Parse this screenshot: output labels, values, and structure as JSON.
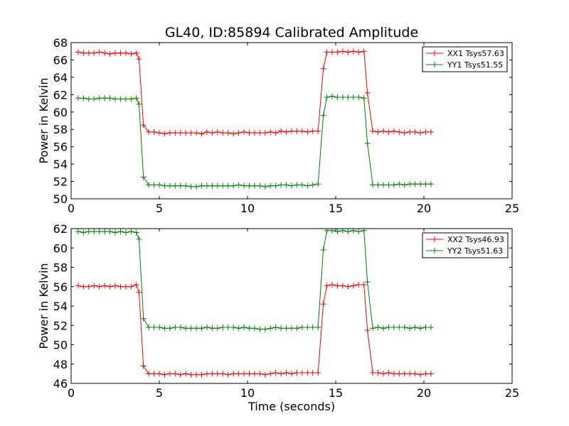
{
  "title": "GL40, ID:85894 Calibrated Amplitude",
  "xlabel": "Time (seconds)",
  "chart_data": [
    {
      "type": "line",
      "ylabel": "Power in Kelvin",
      "xlim": [
        0,
        25
      ],
      "ylim": [
        50,
        68
      ],
      "xticks": [
        0,
        5,
        10,
        15,
        20,
        25
      ],
      "yticks": [
        50,
        52,
        54,
        56,
        58,
        60,
        62,
        64,
        66,
        68
      ],
      "legend_position": "upper right",
      "series": [
        {
          "name": "XX1 Tsys57.63",
          "color": "#ff0000",
          "x": [
            0.4,
            0.7,
            1.0,
            1.3,
            1.6,
            1.9,
            2.2,
            2.5,
            2.8,
            3.1,
            3.4,
            3.7,
            3.85,
            4.1,
            4.4,
            4.7,
            5.0,
            5.3,
            5.6,
            5.9,
            6.2,
            6.5,
            6.8,
            7.1,
            7.4,
            7.7,
            8.0,
            8.3,
            8.6,
            8.9,
            9.2,
            9.5,
            9.8,
            10.1,
            10.4,
            10.7,
            11.0,
            11.3,
            11.6,
            11.9,
            12.2,
            12.5,
            12.8,
            13.1,
            13.4,
            13.7,
            14.0,
            14.3,
            14.5,
            14.8,
            15.1,
            15.4,
            15.7,
            16.0,
            16.3,
            16.6,
            16.8,
            17.1,
            17.4,
            17.7,
            18.0,
            18.3,
            18.6,
            18.9,
            19.2,
            19.5,
            19.8,
            20.1,
            20.4
          ],
          "y": [
            66.9,
            66.8,
            66.8,
            66.8,
            66.9,
            66.8,
            66.7,
            66.8,
            66.8,
            66.8,
            66.7,
            66.8,
            66.1,
            58.5,
            57.7,
            57.7,
            57.6,
            57.5,
            57.6,
            57.6,
            57.6,
            57.6,
            57.6,
            57.6,
            57.5,
            57.7,
            57.6,
            57.7,
            57.6,
            57.6,
            57.5,
            57.6,
            57.7,
            57.6,
            57.6,
            57.6,
            57.6,
            57.7,
            57.6,
            57.8,
            57.7,
            57.8,
            57.8,
            57.8,
            57.7,
            57.8,
            57.8,
            65.0,
            66.9,
            66.9,
            66.9,
            67.0,
            66.9,
            67.0,
            66.9,
            67.0,
            62.2,
            57.8,
            57.7,
            57.8,
            57.7,
            57.8,
            57.7,
            57.6,
            57.7,
            57.7,
            57.6,
            57.7,
            57.7
          ]
        },
        {
          "name": "YY1 Tsys51.55",
          "color": "#008000",
          "x": [
            0.4,
            0.7,
            1.0,
            1.3,
            1.6,
            1.9,
            2.2,
            2.5,
            2.8,
            3.1,
            3.4,
            3.7,
            3.85,
            4.1,
            4.4,
            4.7,
            5.0,
            5.3,
            5.6,
            5.9,
            6.2,
            6.5,
            6.8,
            7.1,
            7.4,
            7.7,
            8.0,
            8.3,
            8.6,
            8.9,
            9.2,
            9.5,
            9.8,
            10.1,
            10.4,
            10.7,
            11.0,
            11.3,
            11.6,
            11.9,
            12.2,
            12.5,
            12.8,
            13.1,
            13.4,
            13.7,
            14.0,
            14.3,
            14.5,
            14.8,
            15.1,
            15.4,
            15.7,
            16.0,
            16.3,
            16.6,
            16.8,
            17.1,
            17.4,
            17.7,
            18.0,
            18.3,
            18.6,
            18.9,
            19.2,
            19.5,
            19.8,
            20.1,
            20.4
          ],
          "y": [
            61.6,
            61.6,
            61.5,
            61.5,
            61.6,
            61.6,
            61.6,
            61.5,
            61.5,
            61.5,
            61.5,
            61.6,
            60.9,
            52.5,
            51.6,
            51.6,
            51.6,
            51.5,
            51.5,
            51.5,
            51.5,
            51.5,
            51.4,
            51.4,
            51.5,
            51.5,
            51.5,
            51.5,
            51.5,
            51.5,
            51.5,
            51.6,
            51.5,
            51.5,
            51.5,
            51.5,
            51.4,
            51.5,
            51.5,
            51.6,
            51.6,
            51.5,
            51.6,
            51.6,
            51.5,
            51.6,
            51.7,
            59.6,
            61.7,
            61.8,
            61.7,
            61.7,
            61.7,
            61.7,
            61.7,
            61.6,
            56.4,
            51.6,
            51.6,
            51.6,
            51.6,
            51.6,
            51.7,
            51.6,
            51.7,
            51.7,
            51.7,
            51.7,
            51.7
          ]
        }
      ]
    },
    {
      "type": "line",
      "ylabel": "Power in Kelvin",
      "xlim": [
        0,
        25
      ],
      "ylim": [
        46,
        62
      ],
      "xticks": [
        0,
        5,
        10,
        15,
        20,
        25
      ],
      "yticks": [
        46,
        48,
        50,
        52,
        54,
        56,
        58,
        60,
        62
      ],
      "legend_position": "upper right",
      "series": [
        {
          "name": "XX2 Tsys46.93",
          "color": "#ff0000",
          "x": [
            0.4,
            0.7,
            1.0,
            1.3,
            1.6,
            1.9,
            2.2,
            2.5,
            2.8,
            3.1,
            3.4,
            3.7,
            3.85,
            4.1,
            4.4,
            4.7,
            5.0,
            5.3,
            5.6,
            5.9,
            6.2,
            6.5,
            6.8,
            7.1,
            7.4,
            7.7,
            8.0,
            8.3,
            8.6,
            8.9,
            9.2,
            9.5,
            9.8,
            10.1,
            10.4,
            10.7,
            11.0,
            11.3,
            11.6,
            11.9,
            12.2,
            12.5,
            12.8,
            13.1,
            13.4,
            13.7,
            14.0,
            14.3,
            14.5,
            14.8,
            15.1,
            15.4,
            15.7,
            16.0,
            16.3,
            16.6,
            16.8,
            17.1,
            17.4,
            17.7,
            18.0,
            18.3,
            18.6,
            18.9,
            19.2,
            19.5,
            19.8,
            20.1,
            20.4
          ],
          "y": [
            56.1,
            56.0,
            56.0,
            56.1,
            56.0,
            56.1,
            56.0,
            56.1,
            56.0,
            56.0,
            56.0,
            56.2,
            55.4,
            47.8,
            47.0,
            47.0,
            47.0,
            46.9,
            47.0,
            47.0,
            46.9,
            47.0,
            46.9,
            46.9,
            46.9,
            47.0,
            47.0,
            47.0,
            47.0,
            46.9,
            47.0,
            47.0,
            47.0,
            47.0,
            47.0,
            47.0,
            46.9,
            47.0,
            47.1,
            47.0,
            47.1,
            47.0,
            47.1,
            47.1,
            47.1,
            47.1,
            47.1,
            54.2,
            56.1,
            56.2,
            56.1,
            56.1,
            56.0,
            56.1,
            56.2,
            56.2,
            51.5,
            47.1,
            47.1,
            47.0,
            47.1,
            47.0,
            47.0,
            47.0,
            47.0,
            47.0,
            46.9,
            47.0,
            47.0
          ]
        },
        {
          "name": "YY2 Tsys51.63",
          "color": "#008000",
          "x": [
            0.4,
            0.7,
            1.0,
            1.3,
            1.6,
            1.9,
            2.2,
            2.5,
            2.8,
            3.1,
            3.4,
            3.7,
            3.85,
            4.1,
            4.4,
            4.7,
            5.0,
            5.3,
            5.6,
            5.9,
            6.2,
            6.5,
            6.8,
            7.1,
            7.4,
            7.7,
            8.0,
            8.3,
            8.6,
            8.9,
            9.2,
            9.5,
            9.8,
            10.1,
            10.4,
            10.7,
            11.0,
            11.3,
            11.6,
            11.9,
            12.2,
            12.5,
            12.8,
            13.1,
            13.4,
            13.7,
            14.0,
            14.3,
            14.5,
            14.8,
            15.1,
            15.4,
            15.7,
            16.0,
            16.3,
            16.6,
            16.8,
            17.1,
            17.4,
            17.7,
            18.0,
            18.3,
            18.6,
            18.9,
            19.2,
            19.5,
            19.8,
            20.1,
            20.4
          ],
          "y": [
            61.7,
            61.6,
            61.7,
            61.7,
            61.7,
            61.7,
            61.7,
            61.6,
            61.7,
            61.6,
            61.7,
            61.6,
            60.9,
            52.7,
            51.8,
            51.8,
            51.8,
            51.7,
            51.7,
            51.8,
            51.8,
            51.7,
            51.7,
            51.7,
            51.7,
            51.8,
            51.7,
            51.7,
            51.8,
            51.8,
            51.8,
            51.7,
            51.8,
            51.7,
            51.7,
            51.6,
            51.6,
            51.7,
            51.8,
            51.7,
            51.7,
            51.7,
            51.7,
            51.8,
            51.8,
            51.8,
            51.8,
            59.8,
            61.8,
            61.8,
            61.7,
            61.8,
            61.7,
            61.8,
            61.7,
            61.8,
            56.5,
            51.7,
            51.8,
            51.7,
            51.8,
            51.8,
            51.8,
            51.8,
            51.7,
            51.8,
            51.7,
            51.8,
            51.8
          ]
        }
      ]
    }
  ]
}
